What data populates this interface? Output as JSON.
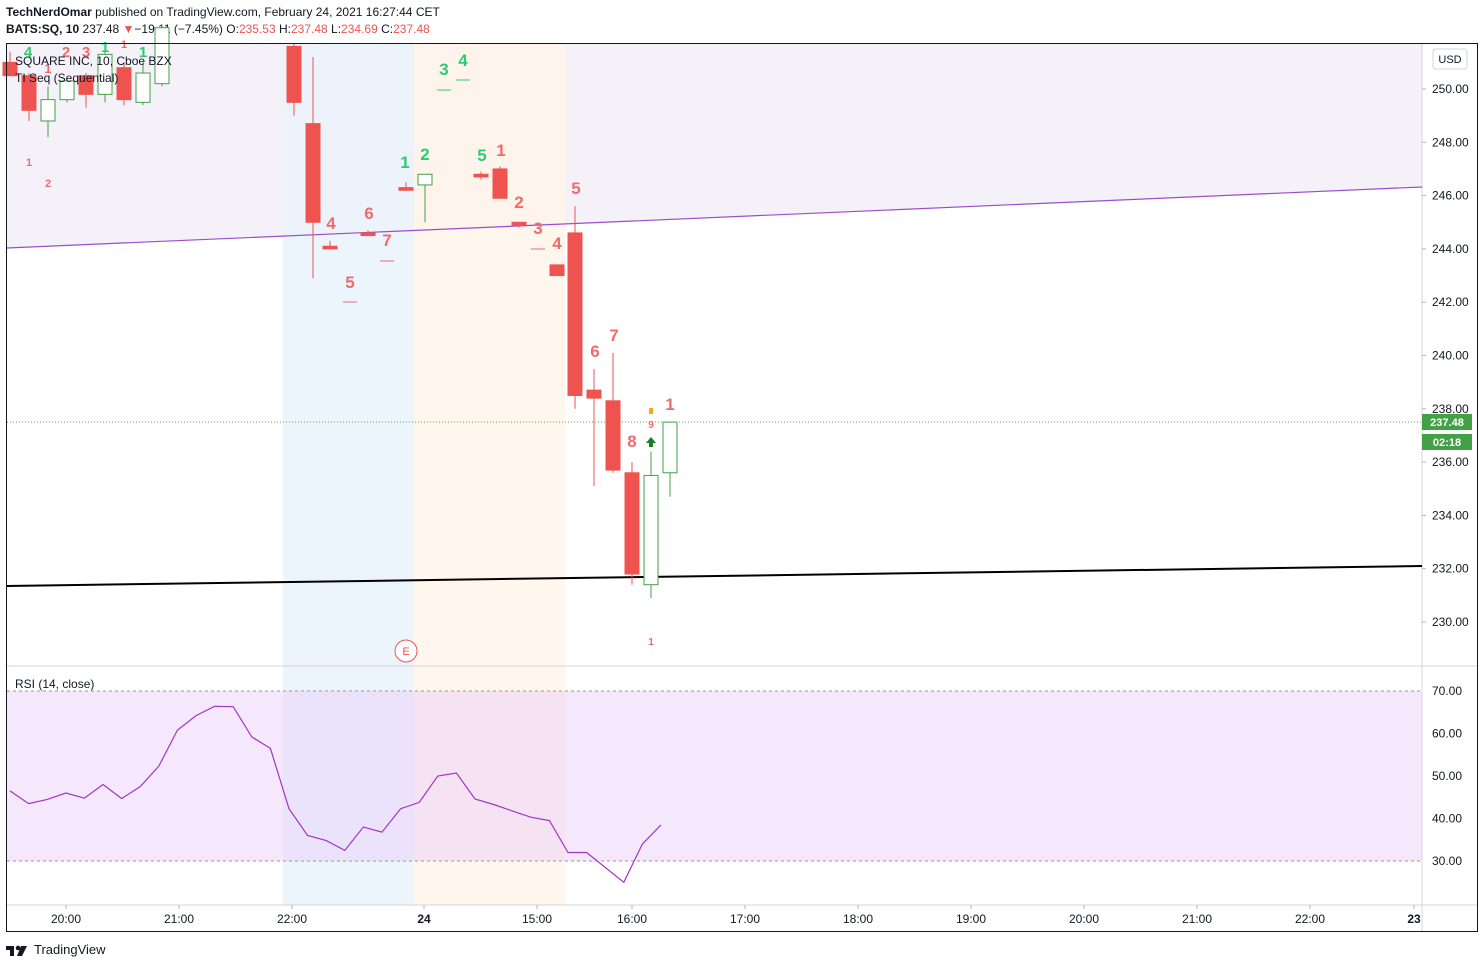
{
  "header": {
    "author": "TechNerdOmar",
    "published_text": "published on TradingView.com, February 24, 2021 16:27:44 CET",
    "symbol": "BATS:SQ, 10",
    "last": "237.48",
    "change_arrow": "▼",
    "change": "−19.11 (−7.45%)",
    "o_label": "O:",
    "o_value": "235.53",
    "h_label": "H:",
    "h_value": "237.48",
    "l_label": "L:",
    "l_value": "234.69",
    "c_label": "C:",
    "c_value": "237.48"
  },
  "legend": {
    "title": "SQUARE INC, 10, Cboe BZX",
    "indicator": "TI Seq (Sequential)",
    "rsi": "RSI (14, close)"
  },
  "price_axis": {
    "currency": "USD",
    "ticks": [
      "250.00",
      "248.00",
      "246.00",
      "244.00",
      "242.00",
      "240.00",
      "238.00",
      "236.00",
      "234.00",
      "232.00",
      "230.00"
    ],
    "last_price_badge": "237.48",
    "countdown_badge": "02:18"
  },
  "rsi_axis": {
    "ticks": [
      "70.00",
      "60.00",
      "50.00",
      "40.00",
      "30.00"
    ]
  },
  "time_axis": {
    "ticks": [
      "20:00",
      "21:00",
      "22:00",
      "24",
      "15:00",
      "16:00",
      "17:00",
      "18:00",
      "19:00",
      "20:00",
      "21:00",
      "22:00",
      "23"
    ]
  },
  "earnings_marker": "E",
  "footer": {
    "brand": "TradingView"
  },
  "colors": {
    "bear": "#ef5350",
    "bull": "#43a047",
    "seq_red": "#f06b6b",
    "seq_green": "#2ecc71",
    "trend_purple": "#9c4dcc",
    "trend_black": "#000000",
    "rsi_line": "#a335c9",
    "rsi_band": "#f3e5fc",
    "session_blue": "#eaf3fc",
    "session_orange": "#fff4ea",
    "channel_fill": "#f4f1f9"
  },
  "chart_data": {
    "type": "candlestick",
    "ylim": [
      228.5,
      252.5
    ],
    "candles": [
      {
        "o": 251.0,
        "h": 251.4,
        "l": 250.5,
        "c": 250.5
      },
      {
        "o": 250.5,
        "h": 250.6,
        "l": 248.8,
        "c": 249.2
      },
      {
        "o": 248.8,
        "h": 250.1,
        "l": 248.2,
        "c": 249.6
      },
      {
        "o": 249.6,
        "h": 250.4,
        "l": 249.5,
        "c": 250.3
      },
      {
        "o": 250.5,
        "h": 250.6,
        "l": 249.3,
        "c": 249.8
      },
      {
        "o": 249.8,
        "h": 251.7,
        "l": 249.5,
        "c": 251.3
      },
      {
        "o": 250.8,
        "h": 251.0,
        "l": 249.4,
        "c": 249.6
      },
      {
        "o": 249.5,
        "h": 251.0,
        "l": 249.4,
        "c": 250.6
      },
      {
        "o": 250.2,
        "h": 252.4,
        "l": 250.1,
        "c": 252.3
      },
      {
        "o": 251.6,
        "h": 251.7,
        "l": 249.0,
        "c": 249.5
      },
      {
        "o": 248.7,
        "h": 251.2,
        "l": 242.9,
        "c": 245.0
      },
      {
        "o": 244.1,
        "h": 244.3,
        "l": 244.0,
        "c": 244.0
      },
      {
        "o": 244.6,
        "h": 244.7,
        "l": 244.5,
        "c": 244.5
      },
      {
        "o": 246.3,
        "h": 246.5,
        "l": 246.2,
        "c": 246.2
      },
      {
        "o": 246.4,
        "h": 246.8,
        "l": 245.0,
        "c": 246.8
      },
      {
        "o": 246.8,
        "h": 246.9,
        "l": 246.6,
        "c": 246.7
      },
      {
        "o": 247.0,
        "h": 247.1,
        "l": 245.9,
        "c": 245.9
      },
      {
        "o": 245.0,
        "h": 245.0,
        "l": 244.8,
        "c": 244.9
      },
      {
        "o": 243.4,
        "h": 243.4,
        "l": 243.0,
        "c": 243.0
      },
      {
        "o": 244.6,
        "h": 245.6,
        "l": 238.0,
        "c": 238.5
      },
      {
        "o": 238.7,
        "h": 239.5,
        "l": 235.1,
        "c": 238.4
      },
      {
        "o": 238.3,
        "h": 240.1,
        "l": 235.6,
        "c": 235.7
      },
      {
        "o": 235.6,
        "h": 236.0,
        "l": 231.4,
        "c": 231.8
      },
      {
        "o": 231.4,
        "h": 236.4,
        "l": 230.9,
        "c": 235.5
      },
      {
        "o": 235.6,
        "h": 237.5,
        "l": 234.7,
        "c": 237.5
      }
    ],
    "rsi": [
      46.5,
      43.5,
      44.5,
      46,
      44.8,
      48,
      44.7,
      47.5,
      52.3,
      60.8,
      64.2,
      66.4,
      66.3,
      59.2,
      56.5,
      42.3,
      36,
      34.8,
      32.5,
      38,
      36.8,
      42.3,
      43.8,
      50,
      50.7,
      44.6,
      43.3,
      41.8,
      40.3,
      39.5,
      32,
      32,
      28.5,
      25,
      34,
      38.5
    ],
    "rsi_levels": [
      70,
      30
    ],
    "last_price": 237.48
  }
}
